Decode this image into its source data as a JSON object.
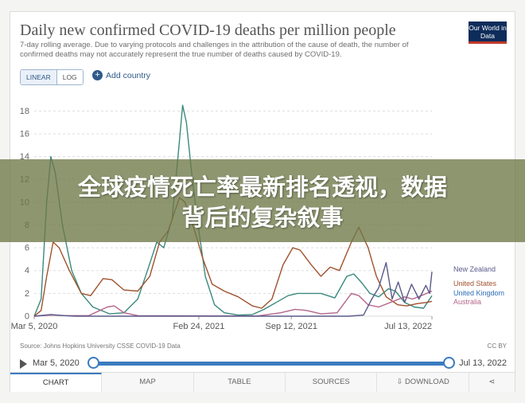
{
  "header": {
    "title": "Daily new confirmed COVID-19 deaths per million people",
    "subtitle": "7-day rolling average. Due to varying protocols and challenges in the attribution of the cause of death, the number of confirmed deaths may not accurately represent the true number of deaths caused by COVID-19.",
    "logo_text": "Our World in Data"
  },
  "controls": {
    "scale_linear": "LINEAR",
    "scale_log": "LOG",
    "add_country": "Add country"
  },
  "chart_data": {
    "type": "line",
    "title": "Daily new confirmed COVID-19 deaths per million people",
    "ylim": [
      0,
      19
    ],
    "y_ticks": [
      "0",
      "2",
      "4",
      "6",
      "8",
      "10",
      "12",
      "14",
      "16",
      "18"
    ],
    "x_ticks": [
      "Mar 5, 2020",
      "Feb 24, 2021",
      "Sep 12, 2021",
      "Jul 13, 2022"
    ],
    "xlim": [
      "2020-03-05",
      "2022-07-13"
    ],
    "grid": true,
    "legend": "right",
    "series": [
      {
        "name": "United Kingdom",
        "color": "#3a8a7e",
        "points": [
          [
            "2020-03-05",
            0
          ],
          [
            "2020-03-20",
            1.5
          ],
          [
            "2020-04-01",
            10
          ],
          [
            "2020-04-10",
            14
          ],
          [
            "2020-04-20",
            12.5
          ],
          [
            "2020-05-05",
            8
          ],
          [
            "2020-05-25",
            4
          ],
          [
            "2020-06-15",
            2
          ],
          [
            "2020-07-10",
            0.8
          ],
          [
            "2020-08-15",
            0.2
          ],
          [
            "2020-09-15",
            0.3
          ],
          [
            "2020-10-15",
            1.5
          ],
          [
            "2020-11-05",
            4
          ],
          [
            "2020-11-25",
            6.5
          ],
          [
            "2020-12-10",
            6
          ],
          [
            "2020-12-28",
            8.5
          ],
          [
            "2021-01-10",
            14
          ],
          [
            "2021-01-20",
            18.5
          ],
          [
            "2021-01-28",
            17
          ],
          [
            "2021-02-10",
            12
          ],
          [
            "2021-02-24",
            7.5
          ],
          [
            "2021-03-10",
            3.5
          ],
          [
            "2021-03-30",
            1
          ],
          [
            "2021-04-20",
            0.3
          ],
          [
            "2021-05-20",
            0.1
          ],
          [
            "2021-06-20",
            0.15
          ],
          [
            "2021-07-15",
            0.6
          ],
          [
            "2021-08-10",
            1.2
          ],
          [
            "2021-09-05",
            1.8
          ],
          [
            "2021-09-25",
            2
          ],
          [
            "2021-10-20",
            2
          ],
          [
            "2021-11-15",
            2
          ],
          [
            "2021-12-15",
            1.6
          ],
          [
            "2022-01-10",
            3.5
          ],
          [
            "2022-01-25",
            3.7
          ],
          [
            "2022-02-10",
            3
          ],
          [
            "2022-03-01",
            2
          ],
          [
            "2022-03-20",
            1.7
          ],
          [
            "2022-04-10",
            2.4
          ],
          [
            "2022-04-25",
            2.2
          ],
          [
            "2022-05-15",
            1.2
          ],
          [
            "2022-06-05",
            0.8
          ],
          [
            "2022-06-25",
            0.7
          ],
          [
            "2022-07-13",
            1.8
          ]
        ]
      },
      {
        "name": "United States",
        "color": "#a0522d",
        "points": [
          [
            "2020-03-05",
            0
          ],
          [
            "2020-03-20",
            0.5
          ],
          [
            "2020-04-01",
            3.5
          ],
          [
            "2020-04-15",
            6.5
          ],
          [
            "2020-04-28",
            6
          ],
          [
            "2020-05-20",
            4
          ],
          [
            "2020-06-15",
            2
          ],
          [
            "2020-07-05",
            1.8
          ],
          [
            "2020-08-01",
            3.3
          ],
          [
            "2020-08-20",
            3.2
          ],
          [
            "2020-09-15",
            2.3
          ],
          [
            "2020-10-15",
            2.2
          ],
          [
            "2020-11-10",
            3.5
          ],
          [
            "2020-12-01",
            6.5
          ],
          [
            "2020-12-20",
            7.5
          ],
          [
            "2021-01-13",
            10.4
          ],
          [
            "2021-01-25",
            10
          ],
          [
            "2021-02-15",
            7.5
          ],
          [
            "2021-03-05",
            5
          ],
          [
            "2021-03-25",
            2.8
          ],
          [
            "2021-04-20",
            2.2
          ],
          [
            "2021-05-20",
            1.7
          ],
          [
            "2021-06-20",
            0.9
          ],
          [
            "2021-07-10",
            0.7
          ],
          [
            "2021-08-01",
            1.5
          ],
          [
            "2021-08-25",
            4.5
          ],
          [
            "2021-09-15",
            6
          ],
          [
            "2021-10-01",
            5.8
          ],
          [
            "2021-10-25",
            4.5
          ],
          [
            "2021-11-15",
            3.5
          ],
          [
            "2021-12-05",
            4.3
          ],
          [
            "2021-12-25",
            4
          ],
          [
            "2022-01-20",
            6.5
          ],
          [
            "2022-02-05",
            7.8
          ],
          [
            "2022-02-25",
            6
          ],
          [
            "2022-03-15",
            3.5
          ],
          [
            "2022-04-05",
            1.7
          ],
          [
            "2022-04-30",
            1
          ],
          [
            "2022-05-20",
            0.9
          ],
          [
            "2022-06-10",
            1.1
          ],
          [
            "2022-06-30",
            1.2
          ],
          [
            "2022-07-13",
            1.3
          ]
        ]
      },
      {
        "name": "Australia",
        "color": "#b5658a",
        "points": [
          [
            "2020-03-05",
            0
          ],
          [
            "2020-04-10",
            0.1
          ],
          [
            "2020-05-15",
            0.05
          ],
          [
            "2020-07-01",
            0.05
          ],
          [
            "2020-08-10",
            0.8
          ],
          [
            "2020-08-25",
            0.9
          ],
          [
            "2020-09-15",
            0.3
          ],
          [
            "2020-10-15",
            0.05
          ],
          [
            "2021-07-01",
            0.02
          ],
          [
            "2021-08-20",
            0.3
          ],
          [
            "2021-09-20",
            0.6
          ],
          [
            "2021-10-15",
            0.5
          ],
          [
            "2021-11-15",
            0.2
          ],
          [
            "2021-12-20",
            0.3
          ],
          [
            "2022-01-20",
            2
          ],
          [
            "2022-02-05",
            1.8
          ],
          [
            "2022-02-25",
            1
          ],
          [
            "2022-03-20",
            0.8
          ],
          [
            "2022-04-20",
            1.3
          ],
          [
            "2022-05-15",
            1.7
          ],
          [
            "2022-06-01",
            1.5
          ],
          [
            "2022-06-20",
            1.8
          ],
          [
            "2022-07-13",
            2.2
          ]
        ]
      },
      {
        "name": "New Zealand",
        "color": "#5a5a8a",
        "points": [
          [
            "2020-03-05",
            0
          ],
          [
            "2020-04-10",
            0.15
          ],
          [
            "2020-05-10",
            0.05
          ],
          [
            "2020-06-01",
            0
          ],
          [
            "2022-01-15",
            0
          ],
          [
            "2022-02-15",
            0.1
          ],
          [
            "2022-03-05",
            1.5
          ],
          [
            "2022-03-20",
            2.5
          ],
          [
            "2022-04-05",
            4.7
          ],
          [
            "2022-04-18",
            1.5
          ],
          [
            "2022-05-01",
            3
          ],
          [
            "2022-05-15",
            1.2
          ],
          [
            "2022-05-30",
            2.8
          ],
          [
            "2022-06-15",
            1.5
          ],
          [
            "2022-06-30",
            2.7
          ],
          [
            "2022-07-08",
            2
          ],
          [
            "2022-07-13",
            3.9
          ]
        ]
      }
    ]
  },
  "footer": {
    "source": "Source: Johns Hopkins University CSSE COVID-19 Data",
    "license": "CC BY"
  },
  "timeline": {
    "start_label": "Mar 5, 2020",
    "end_label": "Jul 13, 2022"
  },
  "tabs": [
    {
      "label": "CHART"
    },
    {
      "label": "MAP"
    },
    {
      "label": "TABLE"
    },
    {
      "label": "SOURCES"
    },
    {
      "label": "DOWNLOAD"
    }
  ],
  "overlay": {
    "line1": "全球疫情死亡率最新排名透视，数据",
    "line2": "背后的复杂叙事"
  }
}
